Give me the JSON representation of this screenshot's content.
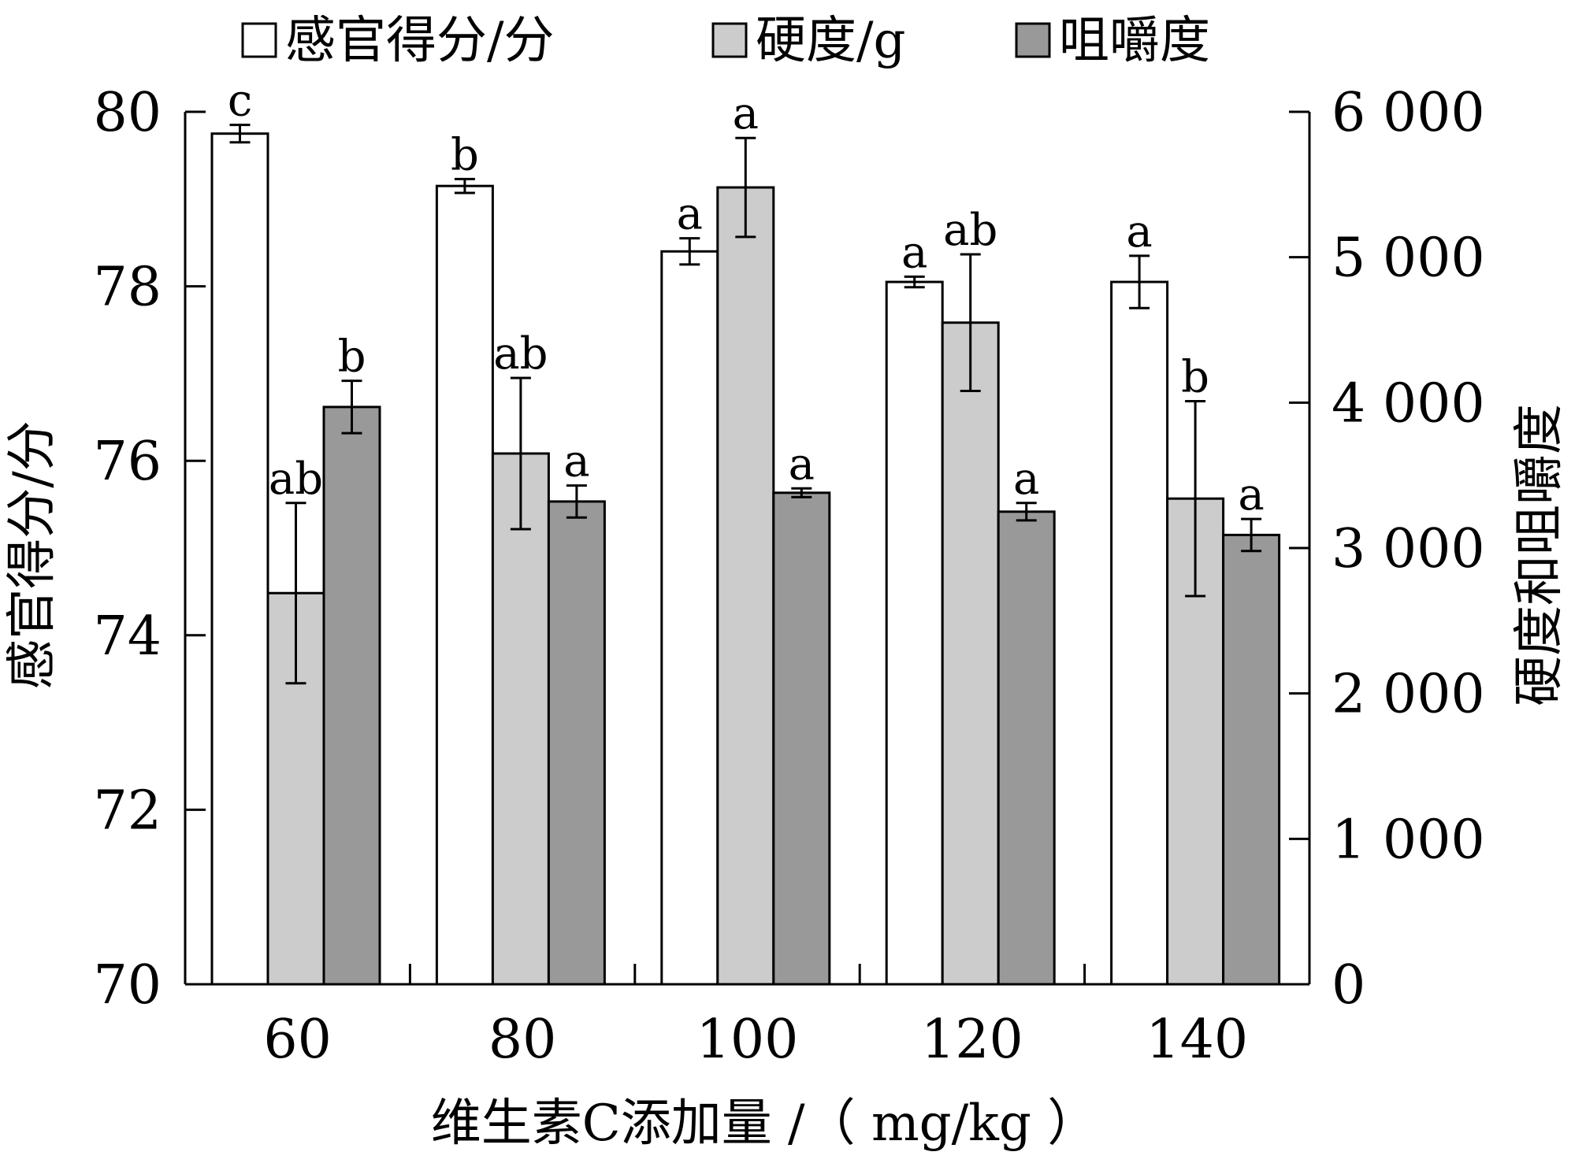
{
  "chart_data": {
    "type": "bar",
    "categories": [
      "60",
      "80",
      "100",
      "120",
      "140"
    ],
    "xlabel": "维生素C添加量 /（ mg/kg ）",
    "ylabel_left": "感官得分/分",
    "ylabel_right": "硬度和咀嚼度",
    "ylim_left": [
      70,
      80
    ],
    "ylim_right": [
      0,
      6000
    ],
    "yticks_left": [
      "70",
      "72",
      "74",
      "76",
      "78",
      "80"
    ],
    "yticks_right": [
      "0",
      "1 000",
      "2 000",
      "3 000",
      "4 000",
      "5 000",
      "6 000"
    ],
    "legend_position": "top",
    "grid": false,
    "series": [
      {
        "name": "感官得分/分",
        "axis": "left",
        "color": "#ffffff",
        "values": [
          79.75,
          79.15,
          78.4,
          78.05,
          78.05
        ],
        "errors": [
          0.1,
          0.08,
          0.15,
          0.06,
          0.3
        ],
        "letters": [
          "c",
          "b",
          "a",
          "a",
          "a"
        ]
      },
      {
        "name": "硬度/g",
        "axis": "right",
        "color": "#cccccc",
        "values": [
          2690,
          3650,
          5480,
          4550,
          3340
        ],
        "errors": [
          620,
          520,
          340,
          470,
          670
        ],
        "letters": [
          "ab",
          "ab",
          "a",
          "ab",
          "b"
        ]
      },
      {
        "name": "咀嚼度",
        "axis": "right",
        "color": "#999999",
        "values": [
          3970,
          3320,
          3380,
          3250,
          3090
        ],
        "errors": [
          180,
          110,
          30,
          60,
          110
        ],
        "letters": [
          "b",
          "a",
          "a",
          "a",
          "a"
        ]
      }
    ]
  }
}
